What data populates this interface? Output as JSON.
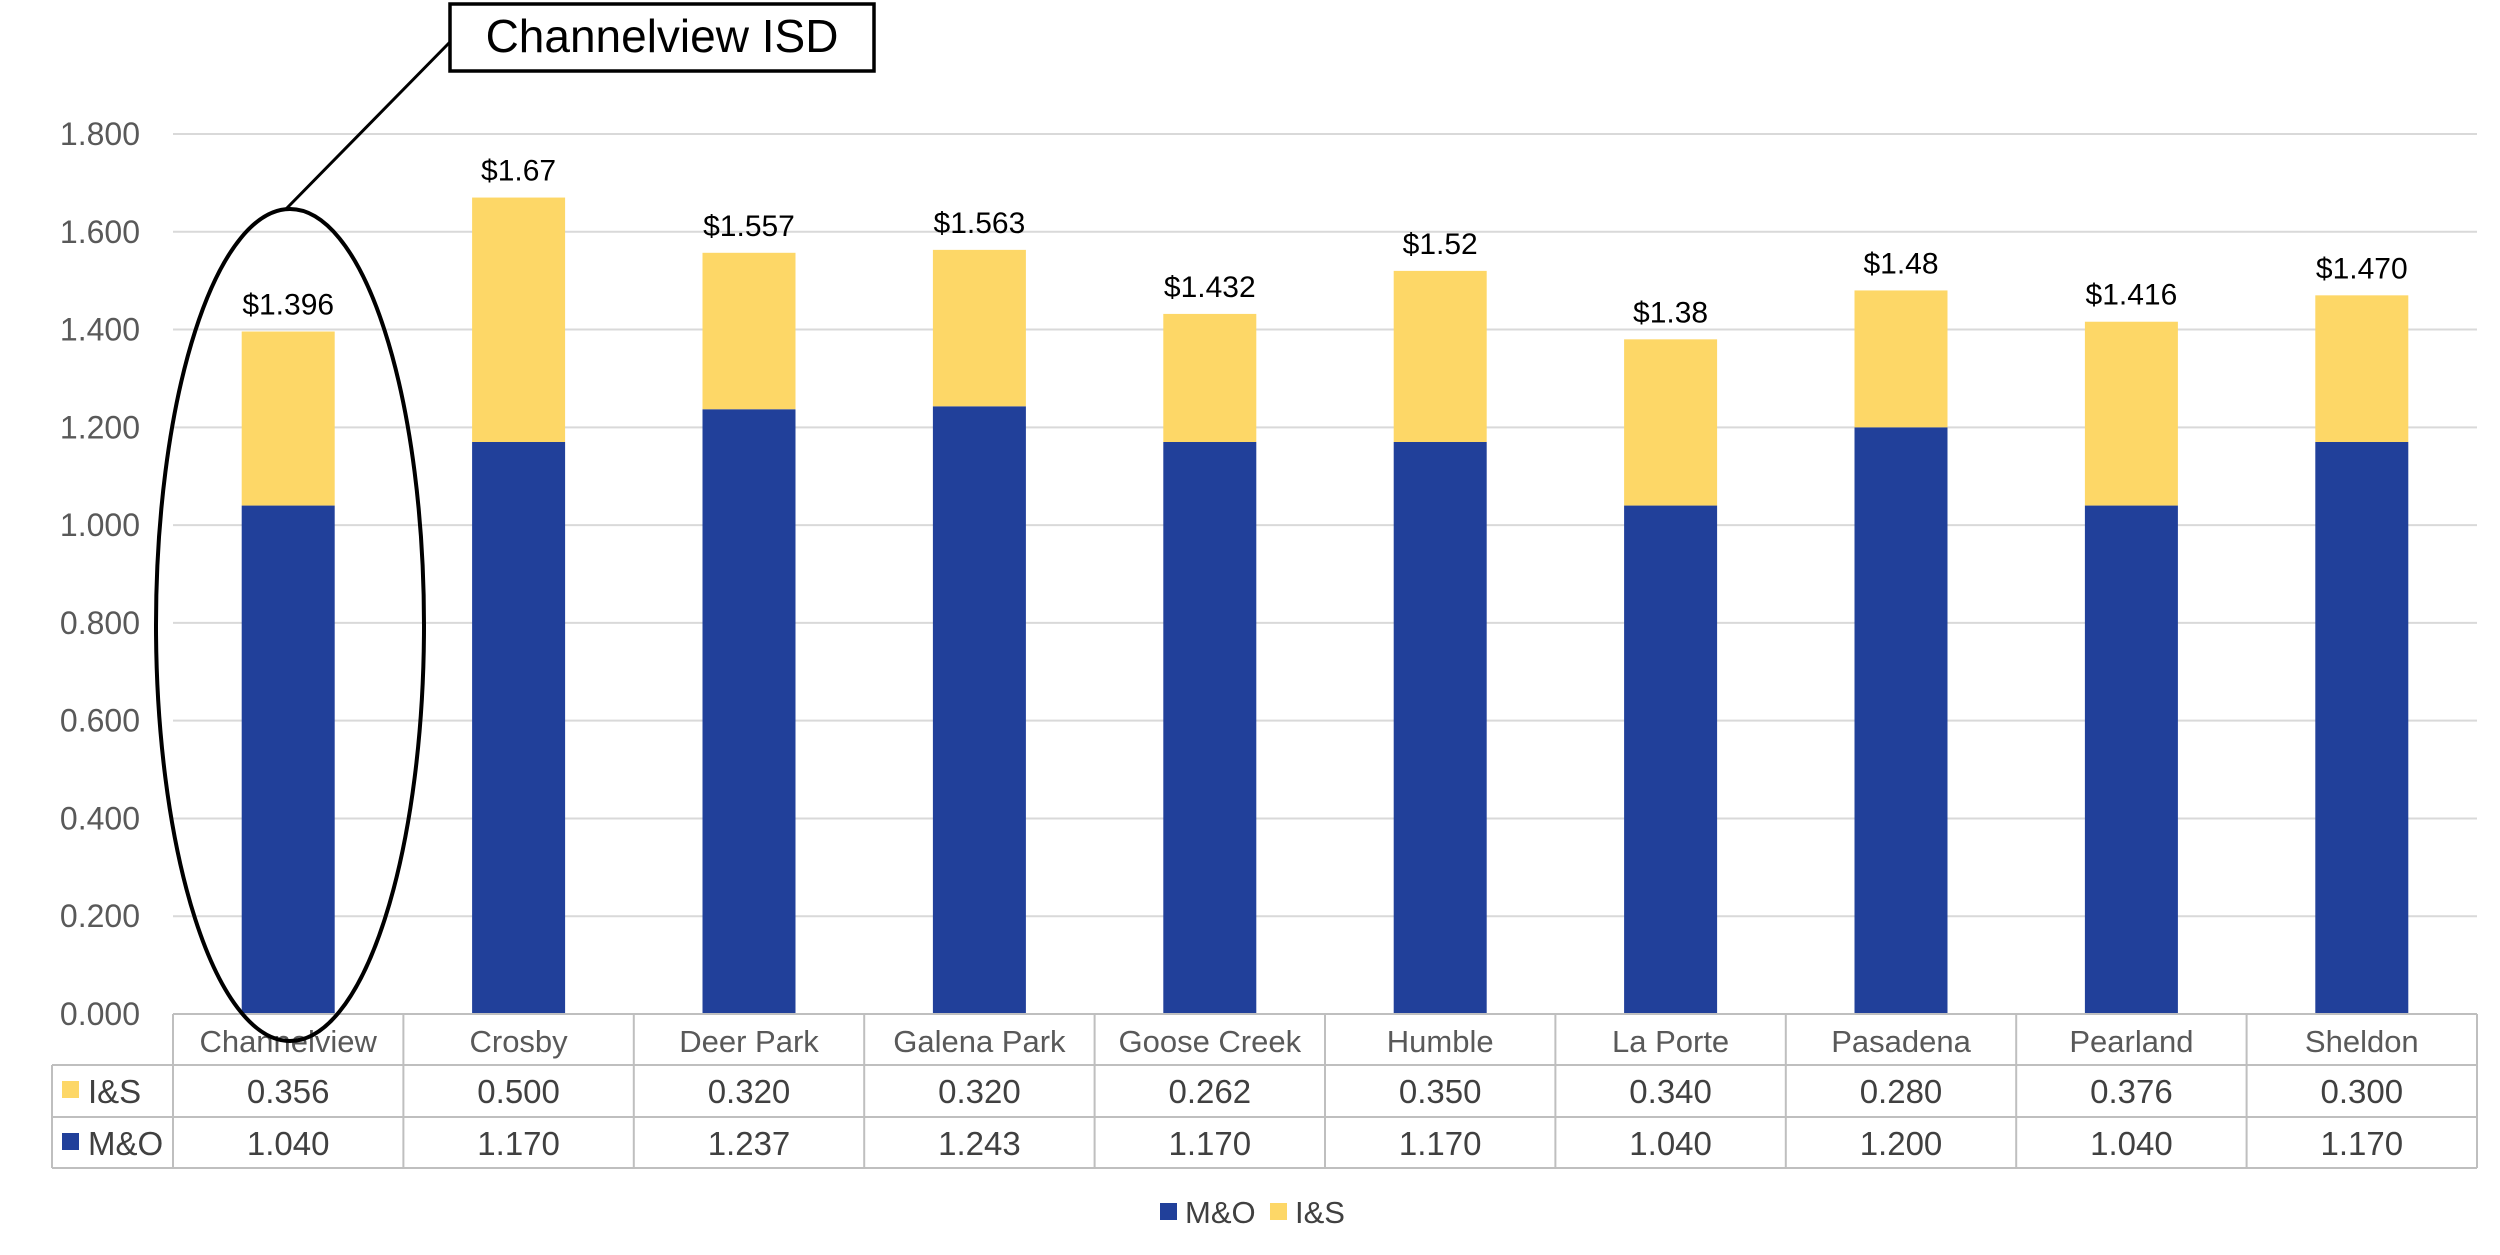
{
  "chart_data": {
    "type": "bar",
    "stacked": true,
    "categories": [
      "Channelview",
      "Crosby",
      "Deer Park",
      "Galena Park",
      "Goose Creek",
      "Humble",
      "La Porte",
      "Pasadena",
      "Pearland",
      "Sheldon"
    ],
    "series": [
      {
        "name": "M&O",
        "color": "#21409A",
        "values": [
          1.04,
          1.17,
          1.237,
          1.243,
          1.17,
          1.17,
          1.04,
          1.2,
          1.04,
          1.17
        ],
        "labels": [
          "1.040",
          "1.170",
          "1.237",
          "1.243",
          "1.170",
          "1.170",
          "1.040",
          "1.200",
          "1.040",
          "1.170"
        ]
      },
      {
        "name": "I&S",
        "color": "#FDD767",
        "values": [
          0.356,
          0.5,
          0.32,
          0.32,
          0.262,
          0.35,
          0.34,
          0.28,
          0.376,
          0.3
        ],
        "labels": [
          "0.356",
          "0.500",
          "0.320",
          "0.320",
          "0.262",
          "0.350",
          "0.340",
          "0.280",
          "0.376",
          "0.300"
        ]
      }
    ],
    "table_rows": [
      "I&S",
      "M&O"
    ],
    "totals": [
      "$1.396",
      "$1.67",
      "$1.557",
      "$1.563",
      "$1.432",
      "$1.52",
      "$1.38",
      "$1.48",
      "$1.416",
      "$1.470"
    ],
    "ylim": [
      0,
      1.8
    ],
    "yticks": [
      "0.000",
      "0.200",
      "0.400",
      "0.600",
      "0.800",
      "1.000",
      "1.200",
      "1.400",
      "1.600",
      "1.800"
    ],
    "ytick_values": [
      0,
      0.2,
      0.4,
      0.6,
      0.8,
      1.0,
      1.2,
      1.4,
      1.6,
      1.8
    ],
    "grid": true,
    "legend_position": "bottom",
    "legend_order": [
      "M&O",
      "I&S"
    ],
    "annotation": {
      "text": "Channelview ISD",
      "target_category": "Channelview"
    }
  }
}
